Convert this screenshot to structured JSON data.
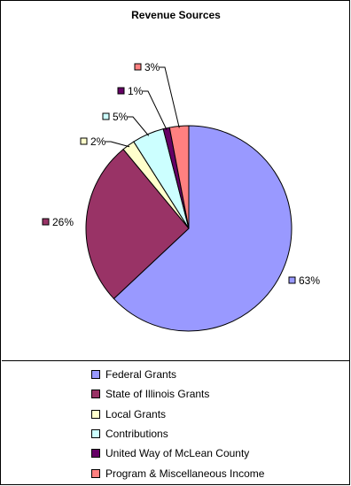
{
  "chart_data": {
    "type": "pie",
    "title": "Revenue Sources",
    "categories": [
      "Federal Grants",
      "State of Illinois Grants",
      "Local Grants",
      "Contributions",
      "United Way of McLean County",
      "Program & Miscellaneous Income"
    ],
    "values": [
      63,
      26,
      2,
      5,
      1,
      3
    ],
    "data_labels": [
      "63%",
      "26%",
      "2%",
      "5%",
      "1%",
      "3%"
    ],
    "colors": [
      "#9999ff",
      "#993366",
      "#ffffcc",
      "#ccffff",
      "#660066",
      "#ff8080"
    ],
    "legend_position": "bottom"
  }
}
